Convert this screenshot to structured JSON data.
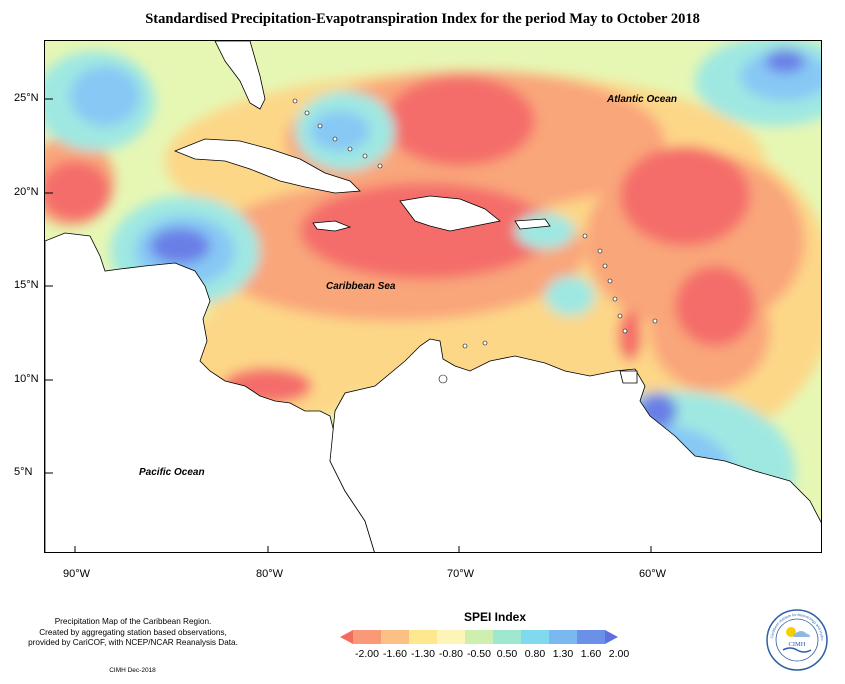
{
  "title": "Standardised Precipitation-Evapotranspiration Index for the period May to October 2018",
  "latitude_labels": [
    "25°N",
    "20°N",
    "15°N",
    "10°N",
    "5°N"
  ],
  "longitude_labels": [
    "90°W",
    "80°W",
    "70°W",
    "60°W"
  ],
  "ocean_labels": {
    "atlantic": "Atlantic Ocean",
    "caribbean": "Caribbean Sea",
    "pacific": "Pacific Ocean"
  },
  "notes": {
    "line1": "Precipitation Map of the Caribbean Region.",
    "line2": "Created by aggregating station based observations,",
    "line3": "provided by CariCOF, with NCEP/NCAR Reanalysis Data.",
    "credit": "CIMH Dec-2018"
  },
  "legend": {
    "title": "SPEI Index",
    "labels": [
      "-2.00",
      "-1.60",
      "-1.30",
      "-0.80",
      "-0.50",
      "0.50",
      "0.80",
      "1.30",
      "1.60",
      "2.00"
    ],
    "colors": [
      "#f46d5c",
      "#f89a78",
      "#fbc184",
      "#fde78f",
      "#fdf5b8",
      "#cdf0b0",
      "#9fe8cf",
      "#7fd9ef",
      "#7ab8f0",
      "#6a90e8",
      "#5e6fe0"
    ]
  },
  "logo": {
    "name": "CIMH",
    "arc_text": "Caribbean Institute for Meteorology and Hydrology"
  },
  "colors": {
    "very_dry": "#f46d6b",
    "dry": "#f9a67a",
    "moderately_dry": "#fdd788",
    "near_normal": "#e6f7b4",
    "moderately_wet": "#9fe8e2",
    "wet": "#87c8f5",
    "very_wet": "#6a7fe6"
  }
}
